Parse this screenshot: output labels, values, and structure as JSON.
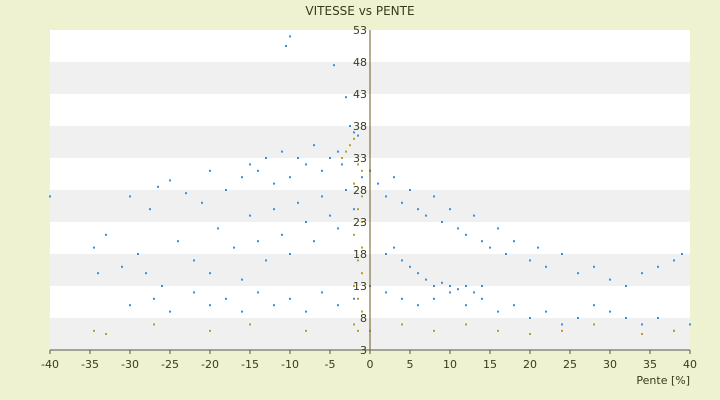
{
  "chart_data": {
    "type": "scatter",
    "title": "VITESSE vs PENTE",
    "xlabel": "Pente [%]",
    "ylabel": "",
    "xlim": [
      -40,
      40
    ],
    "ylim": [
      3,
      53
    ],
    "x_ticks": [
      -40,
      -35,
      -30,
      -25,
      -20,
      -15,
      -10,
      -5,
      0,
      5,
      10,
      15,
      20,
      25,
      30,
      35,
      40
    ],
    "y_ticks": [
      3,
      8,
      13,
      18,
      23,
      28,
      33,
      38,
      43,
      48,
      53
    ],
    "grid": "horizontal bands",
    "legend": "none",
    "series": [
      {
        "color": "#3a8fd9",
        "points": [
          [
            -10,
            52
          ],
          [
            -10.5,
            50.5
          ],
          [
            -4.5,
            47.5
          ],
          [
            -3,
            42.5
          ],
          [
            -2.5,
            38
          ],
          [
            -2,
            37
          ],
          [
            -1.5,
            36.5
          ],
          [
            -40,
            27
          ],
          [
            -30,
            27
          ],
          [
            -27.5,
            25
          ],
          [
            -26.5,
            28.5
          ],
          [
            -25,
            29.5
          ],
          [
            -23,
            27.5
          ],
          [
            -21,
            26
          ],
          [
            -20,
            31
          ],
          [
            -18,
            28
          ],
          [
            -16,
            30
          ],
          [
            -15,
            32
          ],
          [
            -14,
            31
          ],
          [
            -13,
            33
          ],
          [
            -12,
            29
          ],
          [
            -11,
            34
          ],
          [
            -10,
            30
          ],
          [
            -9,
            33
          ],
          [
            -8,
            32
          ],
          [
            -7,
            35
          ],
          [
            -6,
            31
          ],
          [
            -5,
            33
          ],
          [
            -4,
            34
          ],
          [
            -3.5,
            32
          ],
          [
            -34.5,
            19
          ],
          [
            -33,
            21
          ],
          [
            -34,
            15
          ],
          [
            -31,
            16
          ],
          [
            -29,
            18
          ],
          [
            -28,
            15
          ],
          [
            -26,
            13
          ],
          [
            -24,
            20
          ],
          [
            -22,
            17
          ],
          [
            -20,
            15
          ],
          [
            -19,
            22
          ],
          [
            -17,
            19
          ],
          [
            -16,
            14
          ],
          [
            -15,
            24
          ],
          [
            -14,
            20
          ],
          [
            -13,
            17
          ],
          [
            -12,
            25
          ],
          [
            -11,
            21
          ],
          [
            -10,
            18
          ],
          [
            -9,
            26
          ],
          [
            -8,
            23
          ],
          [
            -7,
            20
          ],
          [
            -6,
            27
          ],
          [
            -5,
            24
          ],
          [
            -4,
            22
          ],
          [
            -3,
            28
          ],
          [
            -2,
            25
          ],
          [
            -1,
            30
          ],
          [
            0,
            31
          ],
          [
            1,
            29
          ],
          [
            2,
            27
          ],
          [
            3,
            30
          ],
          [
            4,
            26
          ],
          [
            5,
            28
          ],
          [
            6,
            25
          ],
          [
            7,
            24
          ],
          [
            8,
            27
          ],
          [
            9,
            23
          ],
          [
            10,
            25
          ],
          [
            11,
            22
          ],
          [
            12,
            21
          ],
          [
            13,
            24
          ],
          [
            14,
            20
          ],
          [
            15,
            19
          ],
          [
            16,
            22
          ],
          [
            17,
            18
          ],
          [
            18,
            20
          ],
          [
            20,
            17
          ],
          [
            21,
            19
          ],
          [
            22,
            16
          ],
          [
            24,
            18
          ],
          [
            26,
            15
          ],
          [
            28,
            16
          ],
          [
            30,
            14
          ],
          [
            32,
            13
          ],
          [
            34,
            15
          ],
          [
            36,
            16
          ],
          [
            38,
            17
          ],
          [
            39,
            18
          ],
          [
            -30,
            10
          ],
          [
            -27,
            11
          ],
          [
            -25,
            9
          ],
          [
            -22,
            12
          ],
          [
            -20,
            10
          ],
          [
            -18,
            11
          ],
          [
            -16,
            9
          ],
          [
            -14,
            12
          ],
          [
            -12,
            10
          ],
          [
            -10,
            11
          ],
          [
            -8,
            9
          ],
          [
            -6,
            12
          ],
          [
            -4,
            10
          ],
          [
            -2,
            11
          ],
          [
            0,
            13
          ],
          [
            2,
            12
          ],
          [
            4,
            11
          ],
          [
            6,
            10
          ],
          [
            8,
            11
          ],
          [
            10,
            12
          ],
          [
            12,
            10
          ],
          [
            14,
            11
          ],
          [
            16,
            9
          ],
          [
            18,
            10
          ],
          [
            20,
            8
          ],
          [
            22,
            9
          ],
          [
            24,
            7
          ],
          [
            26,
            8
          ],
          [
            28,
            10
          ],
          [
            30,
            9
          ],
          [
            32,
            8
          ],
          [
            34,
            7
          ],
          [
            36,
            8
          ],
          [
            38,
            6
          ],
          [
            40,
            7
          ],
          [
            2,
            18
          ],
          [
            3,
            19
          ],
          [
            4,
            17
          ],
          [
            5,
            16
          ],
          [
            6,
            15
          ],
          [
            7,
            14
          ],
          [
            8,
            13
          ],
          [
            9,
            13.5
          ],
          [
            10,
            13
          ],
          [
            11,
            12.5
          ],
          [
            12,
            13
          ],
          [
            13,
            12
          ],
          [
            14,
            13
          ]
        ]
      },
      {
        "color": "#b8a020",
        "points": [
          [
            -2,
            36
          ],
          [
            -2.5,
            35
          ],
          [
            -3,
            34
          ],
          [
            -3.5,
            33
          ],
          [
            -1.5,
            32
          ],
          [
            -1,
            31
          ],
          [
            -2,
            29
          ],
          [
            -1,
            27
          ],
          [
            -1.5,
            25
          ],
          [
            -1,
            23
          ],
          [
            -2,
            21
          ],
          [
            -1,
            19
          ],
          [
            -1.5,
            17
          ],
          [
            -1,
            15
          ],
          [
            -2,
            13
          ],
          [
            -1.5,
            11
          ],
          [
            -1,
            9
          ],
          [
            -2,
            7
          ],
          [
            -1.5,
            6
          ],
          [
            -34.5,
            6
          ],
          [
            -33,
            5.5
          ],
          [
            -27,
            7
          ],
          [
            -20,
            6
          ],
          [
            -15,
            7
          ],
          [
            -8,
            6
          ],
          [
            0,
            6
          ],
          [
            4,
            7
          ],
          [
            8,
            6
          ],
          [
            12,
            7
          ],
          [
            16,
            6
          ],
          [
            20,
            5.5
          ],
          [
            24,
            6
          ],
          [
            28,
            7
          ],
          [
            34,
            5.5
          ],
          [
            38,
            6
          ]
        ]
      }
    ]
  }
}
